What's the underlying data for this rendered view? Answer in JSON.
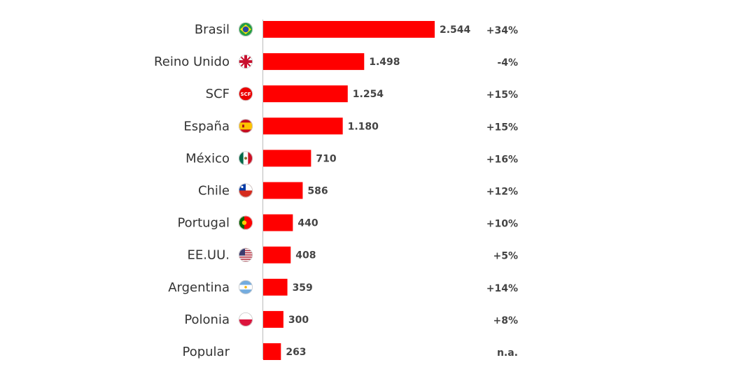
{
  "chart_data": {
    "type": "bar",
    "orientation": "horizontal",
    "categories": [
      "Brasil",
      "Reino Unido",
      "SCF",
      "España",
      "México",
      "Chile",
      "Portugal",
      "EE.UU.",
      "Argentina",
      "Polonia",
      "Popular"
    ],
    "values": [
      2544,
      1498,
      1254,
      1180,
      710,
      586,
      440,
      408,
      359,
      300,
      263
    ],
    "value_labels": [
      "2.544",
      "1.498",
      "1.254",
      "1.180",
      "710",
      "586",
      "440",
      "408",
      "359",
      "300",
      "263"
    ],
    "changes": [
      "+34%",
      "-4%",
      "+15%",
      "+15%",
      "+16%",
      "+12%",
      "+10%",
      "+5%",
      "+14%",
      "+8%",
      "n.a."
    ],
    "icons": [
      "flag-brazil-icon",
      "flag-uk-icon",
      "scf-logo-icon",
      "flag-spain-icon",
      "flag-mexico-icon",
      "flag-chile-icon",
      "flag-portugal-icon",
      "flag-usa-icon",
      "flag-argentina-icon",
      "flag-poland-icon",
      ""
    ],
    "icon_texts": [
      "",
      "",
      "SCF",
      "",
      "",
      "",
      "",
      "",
      "",
      "",
      ""
    ],
    "bar_color": "#ff0000",
    "axis_color": "#bbbbbb",
    "xlim": [
      0,
      2544
    ],
    "grid": false,
    "legend": "none"
  }
}
